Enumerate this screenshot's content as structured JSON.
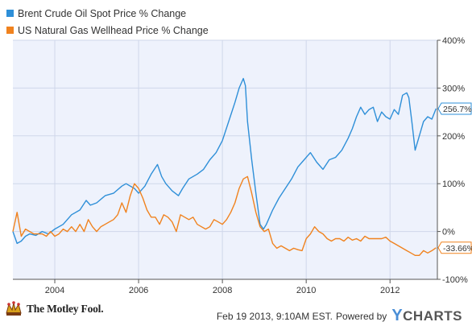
{
  "colors": {
    "brent": "#2e8fd8",
    "gas": "#f0821e",
    "plot_bg": "#eef2fc",
    "grid": "#cfd7ea",
    "axis": "#333333"
  },
  "legend": [
    {
      "label": "Brent Crude Oil Spot Price % Change",
      "color": "#2e8fd8"
    },
    {
      "label": "US Natural Gas Wellhead Price % Change",
      "color": "#f0821e"
    }
  ],
  "chart_data": {
    "type": "line",
    "xlabel": "",
    "ylabel": "",
    "xlim": [
      2003.0,
      2013.13
    ],
    "ylim": [
      -100,
      400
    ],
    "x_ticks": [
      2004,
      2006,
      2008,
      2010,
      2012
    ],
    "x_tick_labels": [
      "2004",
      "2006",
      "2008",
      "2010",
      "2012"
    ],
    "y_ticks": [
      -100,
      0,
      100,
      200,
      300,
      400
    ],
    "y_tick_labels": [
      "-100%",
      "0%",
      "100%",
      "200%",
      "300%",
      "400%"
    ],
    "grid": true,
    "legend_position": "top-left",
    "series": [
      {
        "name": "Brent Crude Oil Spot Price % Change",
        "color": "#2e8fd8",
        "end_label": "256.7%",
        "x": [
          2003.0,
          2003.1,
          2003.2,
          2003.3,
          2003.4,
          2003.55,
          2003.7,
          2003.85,
          2004.0,
          2004.2,
          2004.4,
          2004.6,
          2004.75,
          2004.85,
          2005.0,
          2005.2,
          2005.4,
          2005.6,
          2005.7,
          2005.9,
          2006.0,
          2006.15,
          2006.3,
          2006.45,
          2006.55,
          2006.65,
          2006.8,
          2006.95,
          2007.05,
          2007.2,
          2007.4,
          2007.55,
          2007.7,
          2007.85,
          2008.0,
          2008.15,
          2008.3,
          2008.4,
          2008.5,
          2008.55,
          2008.6,
          2008.7,
          2008.8,
          2008.9,
          2008.98,
          2009.05,
          2009.2,
          2009.35,
          2009.5,
          2009.65,
          2009.8,
          2009.95,
          2010.1,
          2010.25,
          2010.4,
          2010.55,
          2010.7,
          2010.85,
          2011.0,
          2011.1,
          2011.2,
          2011.3,
          2011.4,
          2011.5,
          2011.6,
          2011.7,
          2011.8,
          2011.9,
          2012.0,
          2012.1,
          2012.2,
          2012.3,
          2012.4,
          2012.45,
          2012.52,
          2012.6,
          2012.7,
          2012.8,
          2012.9,
          2013.0,
          2013.1
        ],
        "y": [
          0,
          -25,
          -20,
          -10,
          -5,
          -8,
          0,
          -5,
          5,
          15,
          35,
          45,
          65,
          55,
          60,
          75,
          80,
          95,
          100,
          90,
          80,
          95,
          120,
          140,
          115,
          100,
          85,
          75,
          90,
          110,
          120,
          130,
          150,
          165,
          190,
          230,
          270,
          300,
          320,
          305,
          230,
          150,
          80,
          15,
          5,
          15,
          45,
          70,
          90,
          110,
          135,
          150,
          165,
          145,
          130,
          150,
          155,
          170,
          195,
          215,
          240,
          260,
          245,
          255,
          260,
          230,
          250,
          240,
          235,
          255,
          245,
          285,
          290,
          280,
          230,
          170,
          200,
          230,
          240,
          235,
          257
        ]
      },
      {
        "name": "US Natural Gas Wellhead Price % Change",
        "color": "#f0821e",
        "end_label": "-33.66%",
        "x": [
          2003.0,
          2003.1,
          2003.2,
          2003.3,
          2003.4,
          2003.5,
          2003.6,
          2003.7,
          2003.8,
          2003.9,
          2004.0,
          2004.1,
          2004.2,
          2004.3,
          2004.4,
          2004.5,
          2004.6,
          2004.7,
          2004.8,
          2004.9,
          2005.0,
          2005.1,
          2005.2,
          2005.3,
          2005.4,
          2005.5,
          2005.6,
          2005.7,
          2005.8,
          2005.9,
          2006.0,
          2006.1,
          2006.2,
          2006.3,
          2006.4,
          2006.5,
          2006.6,
          2006.7,
          2006.8,
          2006.9,
          2007.0,
          2007.1,
          2007.2,
          2007.3,
          2007.4,
          2007.5,
          2007.6,
          2007.7,
          2007.8,
          2007.9,
          2008.0,
          2008.1,
          2008.2,
          2008.3,
          2008.4,
          2008.5,
          2008.6,
          2008.7,
          2008.8,
          2008.9,
          2009.0,
          2009.1,
          2009.2,
          2009.3,
          2009.4,
          2009.5,
          2009.6,
          2009.7,
          2009.8,
          2009.9,
          2010.0,
          2010.1,
          2010.2,
          2010.3,
          2010.4,
          2010.5,
          2010.6,
          2010.7,
          2010.8,
          2010.9,
          2011.0,
          2011.1,
          2011.2,
          2011.3,
          2011.4,
          2011.5,
          2011.6,
          2011.7,
          2011.8,
          2011.9,
          2012.0,
          2012.1,
          2012.2,
          2012.3,
          2012.4,
          2012.5,
          2012.6,
          2012.7,
          2012.8,
          2012.9,
          2013.0,
          2013.1
        ],
        "y": [
          0,
          40,
          -10,
          5,
          0,
          -5,
          -5,
          -5,
          -10,
          0,
          -10,
          -5,
          5,
          0,
          10,
          0,
          15,
          0,
          25,
          10,
          0,
          10,
          15,
          20,
          25,
          35,
          60,
          40,
          75,
          100,
          90,
          70,
          45,
          30,
          30,
          15,
          35,
          30,
          20,
          0,
          35,
          30,
          25,
          30,
          15,
          10,
          5,
          10,
          25,
          20,
          15,
          25,
          40,
          60,
          90,
          110,
          115,
          80,
          40,
          10,
          0,
          5,
          -25,
          -35,
          -30,
          -35,
          -40,
          -35,
          -38,
          -40,
          -15,
          -5,
          10,
          0,
          -5,
          -15,
          -20,
          -15,
          -15,
          -20,
          -12,
          -18,
          -15,
          -20,
          -10,
          -15,
          -15,
          -15,
          -15,
          -12,
          -20,
          -25,
          -30,
          -35,
          -40,
          -45,
          -50,
          -50,
          -40,
          -45,
          -40,
          -34
        ]
      }
    ]
  },
  "footer": {
    "brand": "The Motley Fool.",
    "timestamp": "Feb 19 2013, 9:10AM EST.",
    "powered_by": "Powered by",
    "ycharts_y": "Y",
    "ycharts_rest": "CHARTS"
  }
}
